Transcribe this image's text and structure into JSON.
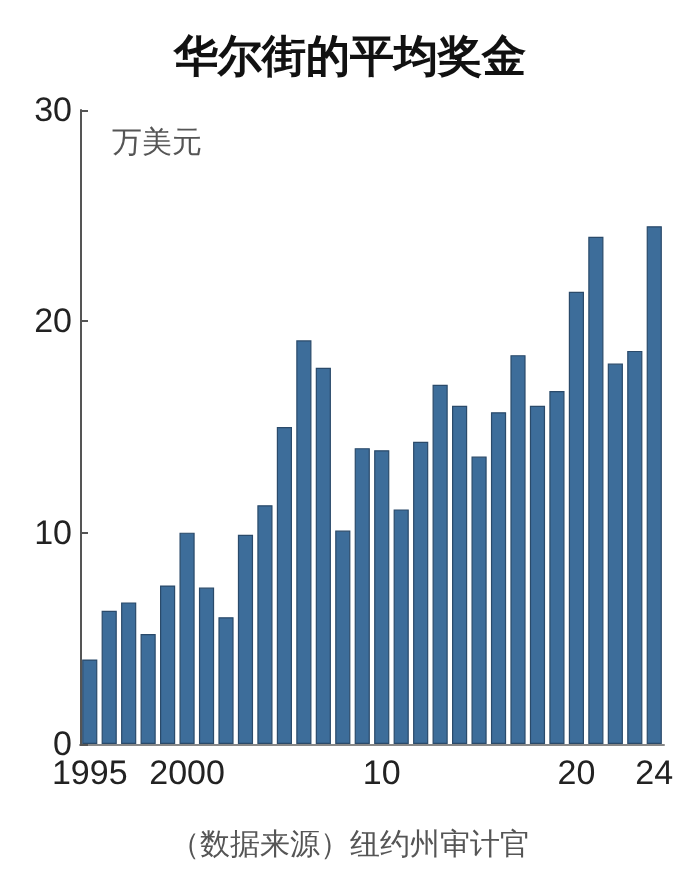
{
  "chart_data": {
    "type": "bar",
    "title": "华尔街的平均奖金",
    "ylabel": "万美元",
    "categories": [
      "1995",
      null,
      null,
      null,
      null,
      "2000",
      null,
      null,
      null,
      null,
      null,
      null,
      null,
      null,
      null,
      "10",
      null,
      null,
      null,
      null,
      null,
      null,
      null,
      null,
      null,
      "20",
      null,
      null,
      null,
      "24"
    ],
    "values": [
      4.0,
      6.3,
      6.7,
      5.2,
      7.5,
      10.0,
      7.4,
      6.0,
      9.9,
      11.3,
      15.0,
      19.1,
      17.8,
      10.1,
      14.0,
      13.9,
      11.1,
      14.3,
      17.0,
      16.0,
      13.6,
      15.7,
      18.4,
      16.0,
      16.7,
      21.4,
      24.0,
      18.0,
      18.6,
      24.5
    ],
    "color": "#3d6d9a",
    "ylim": [
      0,
      30
    ],
    "yticks": [
      0,
      10,
      20,
      30
    ],
    "grid": false,
    "annotations": [
      "（数据来源）纽约州审计官"
    ]
  }
}
